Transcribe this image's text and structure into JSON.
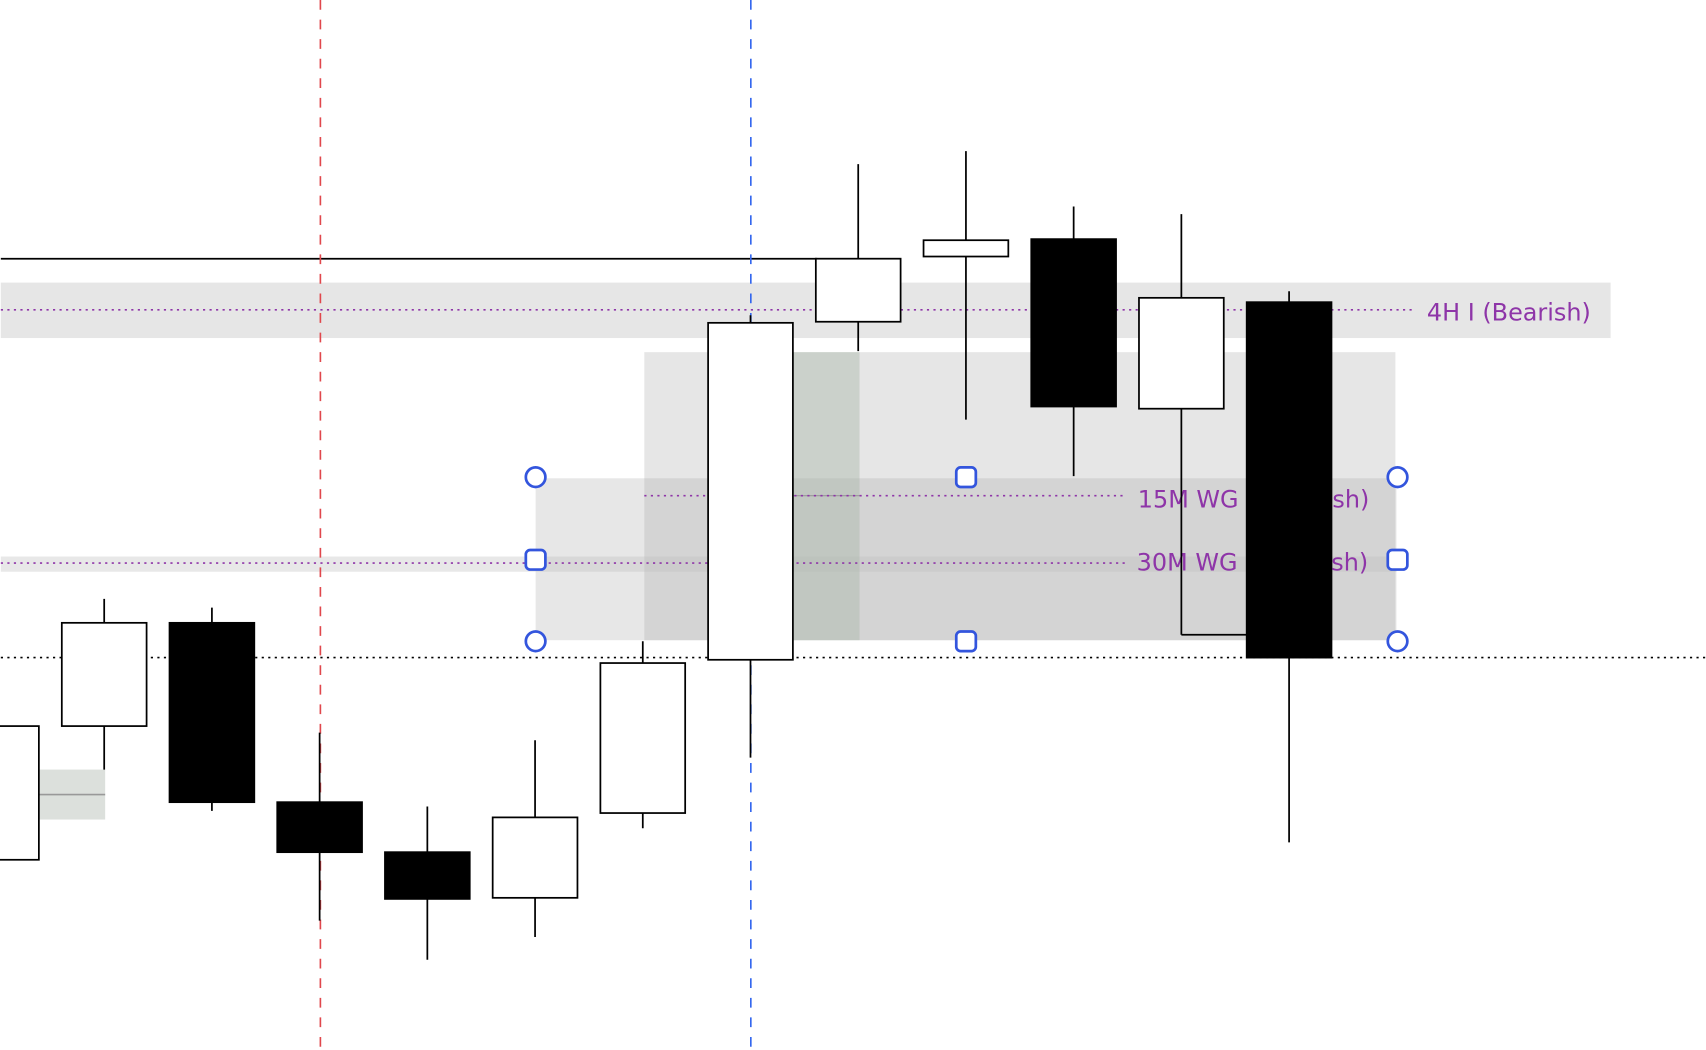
{
  "chart_data": {
    "type": "candlestick",
    "title": "",
    "xlabel": "",
    "ylabel": "",
    "grid": false,
    "candles": [
      {
        "open": 17.5,
        "high": 29.8,
        "low": 17.5,
        "close": 29.8
      },
      {
        "open": 29.8,
        "high": 41.5,
        "low": 25.8,
        "close": 39.3
      },
      {
        "open": 39.3,
        "high": 40.7,
        "low": 22.0,
        "close": 22.8
      },
      {
        "open": 22.8,
        "high": 29.2,
        "low": 11.9,
        "close": 18.2
      },
      {
        "open": 18.2,
        "high": 22.4,
        "low": 8.3,
        "close": 13.9
      },
      {
        "open": 14.0,
        "high": 28.5,
        "low": 10.4,
        "close": 21.4
      },
      {
        "open": 21.8,
        "high": 37.6,
        "low": 20.4,
        "close": 35.6
      },
      {
        "open": 35.9,
        "high": 67.6,
        "low": 26.9,
        "close": 66.9
      },
      {
        "open": 67.0,
        "high": 81.5,
        "low": 64.3,
        "close": 72.8
      },
      {
        "open": 73.0,
        "high": 82.7,
        "low": 58.0,
        "close": 74.5
      },
      {
        "open": 74.6,
        "high": 77.6,
        "low": 52.8,
        "close": 59.2
      },
      {
        "open": 59.0,
        "high": 76.9,
        "low": 38.2,
        "close": 69.2
      },
      {
        "open": 68.8,
        "high": 69.8,
        "low": 19.1,
        "close": 36.1
      }
    ],
    "zones": [
      {
        "label": "4H I (Bearish)",
        "top": 70.6,
        "bottom": 65.5,
        "level": 68.1
      },
      {
        "label": "15M WG I (Bearish)",
        "level": 51.0
      },
      {
        "label": "30M WG I (Bearish)",
        "top": 45.4,
        "bottom": 44.0,
        "level": 45.0
      }
    ],
    "horizontal_lines": [
      {
        "style": "solid",
        "color": "#000000",
        "level": 72.8
      },
      {
        "style": "dotted",
        "color": "#000000",
        "level": 36.1
      }
    ],
    "vertical_lines": [
      {
        "style": "dashed",
        "color": "#e0474c",
        "candle_index": 3
      },
      {
        "style": "dashed",
        "color": "#3366ee",
        "candle_index": 7
      }
    ]
  },
  "colors": {
    "zone_label": "#8e35a8",
    "zone_fill": "#e6e6e6",
    "selection_handle": "#3355dd",
    "bull_body": "#ffffff",
    "bear_body": "#000000"
  }
}
